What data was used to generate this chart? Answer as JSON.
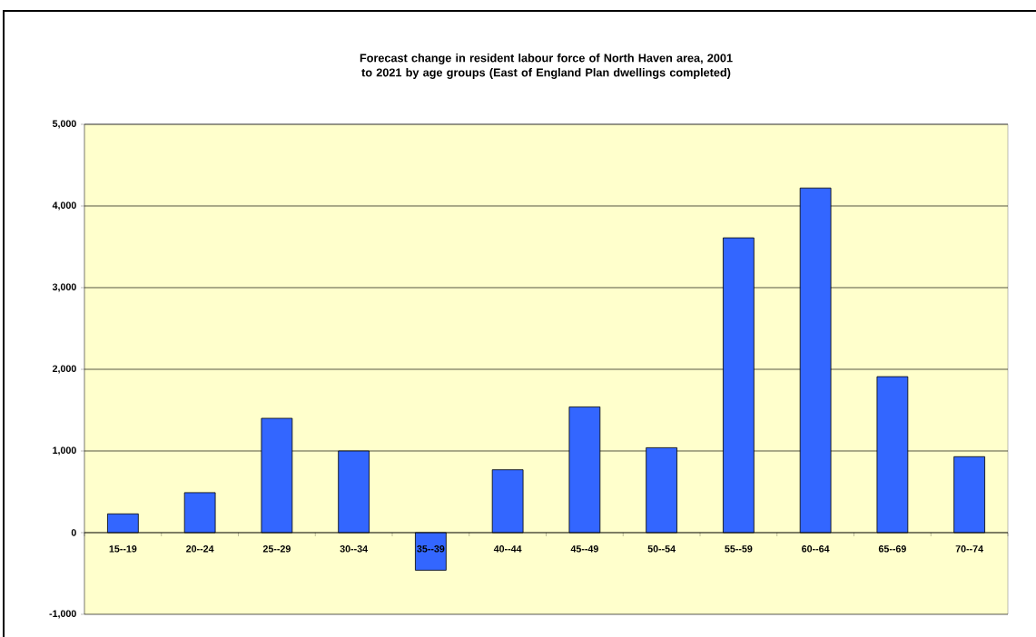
{
  "chart_data": {
    "type": "bar",
    "title": "Forecast change in  resident labour force of North Haven area, 2001 to 2021 by age groups (East of England Plan dwellings completed)",
    "categories": [
      "15--19",
      "20--24",
      "25--29",
      "30--34",
      "35--39",
      "40--44",
      "45--49",
      "50--54",
      "55--59",
      "60--64",
      "65--69",
      "70--74"
    ],
    "values": [
      230,
      490,
      1400,
      1000,
      -460,
      770,
      1540,
      1040,
      3610,
      4220,
      1910,
      930
    ],
    "color": "#3366ff",
    "ylim": [
      -1000,
      5000
    ],
    "yticks": [
      {
        "value": -1000,
        "label": "-1,000"
      },
      {
        "value": 0,
        "label": "0"
      },
      {
        "value": 1000,
        "label": "1,000"
      },
      {
        "value": 2000,
        "label": "2,000"
      },
      {
        "value": 3000,
        "label": "3,000"
      },
      {
        "value": 4000,
        "label": "4,000"
      },
      {
        "value": 5000,
        "label": "5,000"
      }
    ],
    "grid": "y"
  }
}
